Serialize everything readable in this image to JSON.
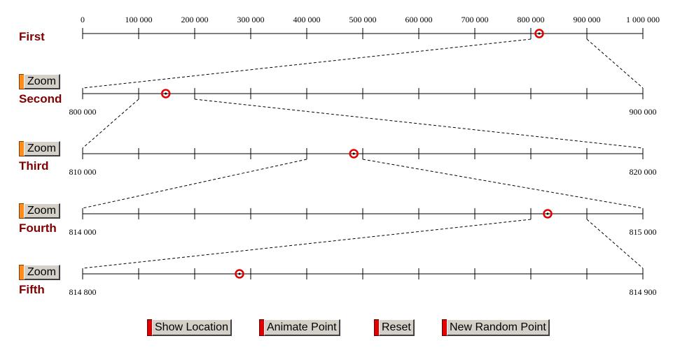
{
  "rows": [
    {
      "label": "First",
      "start_label": "0",
      "end_label": "1 000 000",
      "tick_labels": [
        "0",
        "100 000",
        "200 000",
        "300 000",
        "400 000",
        "500 000",
        "600 000",
        "700 000",
        "800 000",
        "900 000",
        "1 000 000"
      ],
      "min": 0,
      "max": 1000000,
      "point": 815000
    },
    {
      "label": "Second",
      "start_label": "800 000",
      "end_label": "900 000",
      "zoom_label": "Zoom",
      "min": 800000,
      "max": 900000,
      "point": 814840
    },
    {
      "label": "Third",
      "start_label": "810 000",
      "end_label": "820 000",
      "zoom_label": "Zoom",
      "min": 810000,
      "max": 820000,
      "point": 814840
    },
    {
      "label": "Fourth",
      "start_label": "814 000",
      "end_label": "815 000",
      "zoom_label": "Zoom",
      "min": 814000,
      "max": 815000,
      "point": 814830
    },
    {
      "label": "Fifth",
      "start_label": "814 800",
      "end_label": "814 900",
      "zoom_label": "Zoom",
      "min": 814800,
      "max": 814900,
      "point": 814828
    }
  ],
  "zoom_segments": [
    8,
    1,
    4,
    8
  ],
  "buttons": {
    "show_location": "Show Location",
    "animate_point": "Animate Point",
    "reset": "Reset",
    "new_random_point": "New Random Point"
  },
  "colors": {
    "point": "#e00000",
    "label": "#800000",
    "zoom_accent": "#ff8c1a",
    "button_accent": "#e00000"
  }
}
